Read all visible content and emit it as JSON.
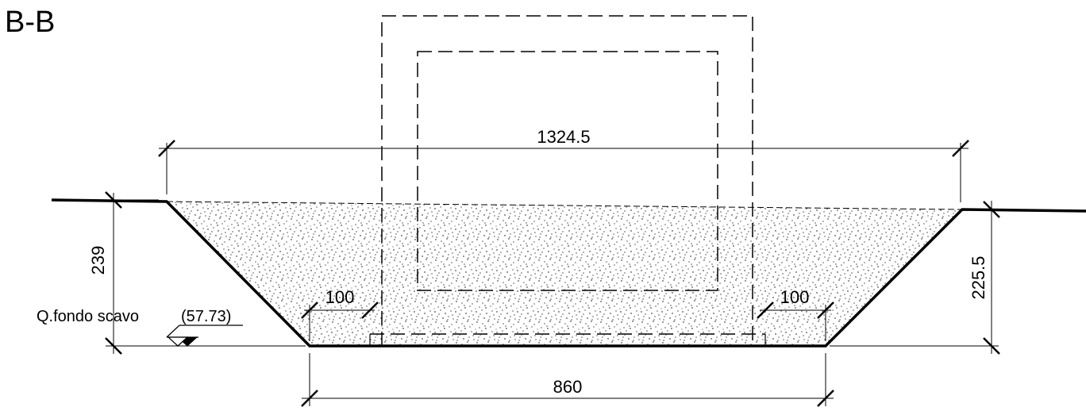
{
  "section": {
    "title": "B-B"
  },
  "dimensions": {
    "top_width": "1324.5",
    "bottom_width": "860",
    "left_depth": "239",
    "right_depth": "225.5",
    "left_offset": "100",
    "right_offset": "100"
  },
  "elevation": {
    "label": "Q.fondo scavo",
    "value": "(57.73)"
  },
  "colors": {
    "line": "#000000",
    "background": "#ffffff"
  }
}
